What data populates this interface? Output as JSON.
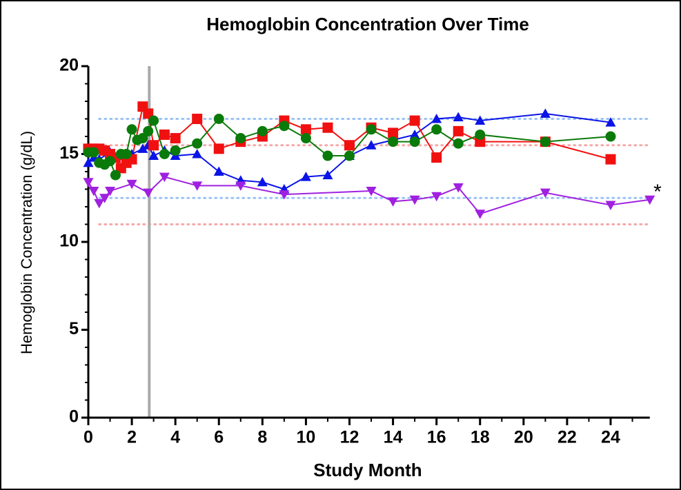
{
  "chart_data": {
    "type": "line",
    "title": "Hemoglobin Concentration Over Time",
    "xlabel": "Study Month",
    "ylabel": "Hemoglobin Concentration (g/dL)",
    "annotation": "*",
    "xlim": [
      0,
      25.8
    ],
    "ylim": [
      0,
      20
    ],
    "xticks": [
      0,
      2,
      4,
      6,
      8,
      10,
      12,
      14,
      16,
      18,
      20,
      22,
      24
    ],
    "yticks": [
      0,
      5,
      10,
      15,
      20
    ],
    "xminor": 1,
    "yminor": 1,
    "reference_lines": [
      {
        "value": 17,
        "color": "#9cc3f5",
        "start": 0.5
      },
      {
        "value": 12.5,
        "color": "#9cc3f5",
        "start": 0.5
      },
      {
        "value": 15.5,
        "color": "#f5a9a9",
        "start": 0.5
      },
      {
        "value": 11,
        "color": "#f5a9a9",
        "start": 0.5
      }
    ],
    "vertical_line": {
      "value": 2.8,
      "color": "#aaaaaa"
    },
    "series": [
      {
        "color": "#0a14e6",
        "marker": "triangle-up",
        "x": [
          0,
          0.25,
          0.5,
          1,
          1.5,
          2,
          2.5,
          2.75,
          3,
          3.5,
          4,
          5,
          6,
          7,
          8,
          9,
          10,
          11,
          12,
          13,
          14,
          15,
          16,
          17,
          18,
          21,
          24
        ],
        "values": [
          14.5,
          14.8,
          14.7,
          15.1,
          14.9,
          15.0,
          15.3,
          15.5,
          14.9,
          15.2,
          14.9,
          15.0,
          14.0,
          13.5,
          13.4,
          13.0,
          13.7,
          13.8,
          14.9,
          15.5,
          15.8,
          16.1,
          17.0,
          17.1,
          16.9,
          17.3,
          16.8
        ]
      },
      {
        "color": "#f01010",
        "marker": "square",
        "x": [
          0,
          0.25,
          0.5,
          0.75,
          1,
          1.25,
          1.5,
          1.75,
          2,
          2.5,
          2.75,
          3,
          3.5,
          4,
          5,
          6,
          7,
          8,
          9,
          10,
          11,
          12,
          13,
          14,
          15,
          16,
          17,
          18,
          21,
          24
        ],
        "values": [
          15.3,
          15.3,
          15.3,
          15.2,
          15.0,
          14.8,
          14.2,
          14.5,
          14.7,
          17.7,
          17.3,
          15.5,
          16.1,
          15.9,
          17.0,
          15.3,
          15.7,
          16.0,
          16.9,
          16.4,
          16.5,
          15.5,
          16.5,
          16.2,
          16.9,
          14.8,
          16.3,
          15.7,
          15.7,
          14.7
        ]
      },
      {
        "color": "#0a7a0a",
        "marker": "circle",
        "x": [
          0,
          0.25,
          0.5,
          0.75,
          1,
          1.25,
          1.5,
          1.75,
          2,
          2.25,
          2.5,
          2.75,
          3,
          3.5,
          4,
          5,
          6,
          7,
          8,
          9,
          10,
          11,
          12,
          13,
          14,
          15,
          16,
          17,
          18,
          21,
          24
        ],
        "values": [
          15.1,
          15.1,
          14.5,
          14.4,
          14.6,
          13.8,
          15.0,
          15.0,
          16.4,
          15.8,
          15.9,
          16.3,
          16.9,
          15.0,
          15.2,
          15.6,
          17.0,
          15.9,
          16.3,
          16.6,
          15.9,
          14.9,
          14.9,
          16.4,
          15.7,
          15.7,
          16.4,
          15.6,
          16.1,
          15.7,
          16.0
        ]
      },
      {
        "color": "#a020e0",
        "marker": "triangle-down",
        "x": [
          0,
          0.25,
          0.5,
          0.75,
          1,
          2,
          2.75,
          3.5,
          5,
          7,
          9,
          13,
          14,
          15,
          16,
          17,
          18,
          21,
          24,
          25.8
        ],
        "values": [
          13.4,
          12.9,
          12.2,
          12.5,
          12.9,
          13.3,
          12.8,
          13.7,
          13.2,
          13.2,
          12.7,
          12.9,
          12.3,
          12.4,
          12.6,
          13.1,
          11.6,
          12.8,
          12.1,
          12.4
        ]
      }
    ]
  }
}
